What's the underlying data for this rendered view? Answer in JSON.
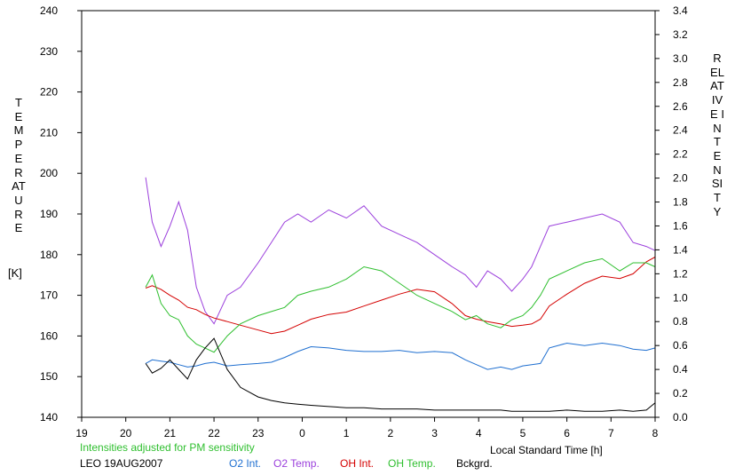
{
  "chart_data": {
    "type": "line",
    "left_axis_label": "TEMPERATURE",
    "left_axis_unit": "[K]",
    "right_axis_label": "RELATIVE INTENSITY",
    "xlabel": "Local Standard Time [h]",
    "note": "Intensities adjusted for PM sensitivity",
    "station": "LEO 19AUG2007",
    "x_ticks": [
      "19",
      "20",
      "21",
      "22",
      "23",
      "0",
      "1",
      "2",
      "3",
      "4",
      "5",
      "6",
      "7",
      "8"
    ],
    "xlim": [
      19,
      32
    ],
    "y_left_ticks": [
      "140",
      "150",
      "160",
      "170",
      "180",
      "190",
      "200",
      "210",
      "220",
      "230",
      "240"
    ],
    "ylim_left": [
      140,
      240
    ],
    "y_right_ticks": [
      "0.0",
      "0.2",
      "0.4",
      "0.6",
      "0.8",
      "1.0",
      "1.2",
      "1.4",
      "1.6",
      "1.8",
      "2.0",
      "2.2",
      "2.4",
      "2.6",
      "2.8",
      "3.0",
      "3.2",
      "3.4"
    ],
    "ylim_right": [
      0,
      3.4
    ],
    "grid": false,
    "legend_placement": "bottom",
    "series": [
      {
        "name": "O2 Int.",
        "color": "#1f6fd0",
        "axis": "right",
        "x": [
          20.45,
          20.6,
          20.8,
          21.0,
          21.2,
          21.4,
          21.6,
          21.8,
          22.0,
          22.3,
          22.6,
          23.0,
          23.3,
          23.6,
          23.9,
          24.2,
          24.6,
          25.0,
          25.4,
          25.8,
          26.2,
          26.6,
          27.0,
          27.4,
          27.7,
          27.95,
          28.2,
          28.5,
          28.75,
          29.0,
          29.2,
          29.4,
          29.6,
          30.0,
          30.4,
          30.8,
          31.2,
          31.5,
          31.8,
          32.0
        ],
        "values": [
          0.45,
          0.48,
          0.47,
          0.46,
          0.44,
          0.42,
          0.43,
          0.45,
          0.46,
          0.43,
          0.44,
          0.45,
          0.46,
          0.5,
          0.55,
          0.59,
          0.58,
          0.56,
          0.55,
          0.55,
          0.56,
          0.54,
          0.55,
          0.54,
          0.48,
          0.44,
          0.4,
          0.42,
          0.4,
          0.43,
          0.44,
          0.45,
          0.58,
          0.62,
          0.6,
          0.62,
          0.6,
          0.57,
          0.56,
          0.58
        ]
      },
      {
        "name": "O2 Temp.",
        "color": "#9b3fdc",
        "axis": "left",
        "x": [
          20.45,
          20.6,
          20.8,
          21.0,
          21.2,
          21.4,
          21.6,
          21.8,
          22.0,
          22.3,
          22.6,
          23.0,
          23.3,
          23.6,
          23.9,
          24.2,
          24.6,
          25.0,
          25.4,
          25.8,
          26.2,
          26.6,
          27.0,
          27.4,
          27.7,
          27.95,
          28.2,
          28.5,
          28.75,
          29.0,
          29.2,
          29.4,
          29.6,
          30.0,
          30.4,
          30.8,
          31.2,
          31.5,
          31.8,
          32.0
        ],
        "values": [
          199,
          188,
          182,
          187,
          193,
          186,
          172,
          166,
          163,
          170,
          172,
          178,
          183,
          188,
          190,
          188,
          191,
          189,
          192,
          187,
          185,
          183,
          180,
          177,
          175,
          172,
          176,
          174,
          171,
          174,
          177,
          182,
          187,
          188,
          189,
          190,
          188,
          183,
          182,
          181
        ]
      },
      {
        "name": "OH Int.",
        "color": "#d40000",
        "axis": "right",
        "x": [
          20.45,
          20.6,
          20.8,
          21.0,
          21.2,
          21.4,
          21.6,
          21.8,
          22.0,
          22.3,
          22.6,
          23.0,
          23.3,
          23.6,
          23.9,
          24.2,
          24.6,
          25.0,
          25.4,
          25.8,
          26.2,
          26.6,
          27.0,
          27.4,
          27.7,
          27.95,
          28.2,
          28.5,
          28.75,
          29.0,
          29.2,
          29.4,
          29.6,
          30.0,
          30.4,
          30.8,
          31.2,
          31.5,
          31.8,
          32.0
        ],
        "values": [
          1.08,
          1.1,
          1.07,
          1.02,
          0.98,
          0.92,
          0.9,
          0.86,
          0.83,
          0.8,
          0.77,
          0.73,
          0.7,
          0.72,
          0.77,
          0.82,
          0.86,
          0.88,
          0.93,
          0.98,
          1.03,
          1.07,
          1.05,
          0.95,
          0.85,
          0.82,
          0.8,
          0.78,
          0.76,
          0.77,
          0.78,
          0.82,
          0.93,
          1.03,
          1.12,
          1.18,
          1.16,
          1.2,
          1.3,
          1.34
        ]
      },
      {
        "name": "OH Temp.",
        "color": "#2fbf2f",
        "axis": "left",
        "x": [
          20.45,
          20.6,
          20.8,
          21.0,
          21.2,
          21.4,
          21.6,
          21.8,
          22.0,
          22.3,
          22.6,
          23.0,
          23.3,
          23.6,
          23.9,
          24.2,
          24.6,
          25.0,
          25.4,
          25.8,
          26.2,
          26.6,
          27.0,
          27.4,
          27.7,
          27.95,
          28.2,
          28.5,
          28.75,
          29.0,
          29.2,
          29.4,
          29.6,
          30.0,
          30.4,
          30.8,
          31.2,
          31.5,
          31.8,
          32.0
        ],
        "values": [
          172,
          175,
          168,
          165,
          164,
          160,
          158,
          157,
          156,
          160,
          163,
          165,
          166,
          167,
          170,
          171,
          172,
          174,
          177,
          176,
          173,
          170,
          168,
          166,
          164,
          165,
          163,
          162,
          164,
          165,
          167,
          170,
          174,
          176,
          178,
          179,
          176,
          178,
          178,
          177
        ]
      },
      {
        "name": "Bckgrd.",
        "color": "#000000",
        "axis": "right",
        "x": [
          20.45,
          20.6,
          20.8,
          21.0,
          21.2,
          21.4,
          21.6,
          21.8,
          22.0,
          22.3,
          22.6,
          23.0,
          23.3,
          23.6,
          23.9,
          24.2,
          24.6,
          25.0,
          25.4,
          25.8,
          26.2,
          26.6,
          27.0,
          27.4,
          27.7,
          27.95,
          28.2,
          28.5,
          28.75,
          29.0,
          29.2,
          29.4,
          29.6,
          30.0,
          30.4,
          30.8,
          31.2,
          31.5,
          31.8,
          32.0
        ],
        "values": [
          0.45,
          0.37,
          0.41,
          0.48,
          0.4,
          0.32,
          0.48,
          0.58,
          0.66,
          0.4,
          0.25,
          0.17,
          0.14,
          0.12,
          0.11,
          0.1,
          0.09,
          0.08,
          0.08,
          0.07,
          0.07,
          0.07,
          0.06,
          0.06,
          0.06,
          0.06,
          0.06,
          0.06,
          0.05,
          0.05,
          0.05,
          0.05,
          0.05,
          0.06,
          0.05,
          0.05,
          0.06,
          0.05,
          0.06,
          0.12
        ]
      }
    ]
  }
}
